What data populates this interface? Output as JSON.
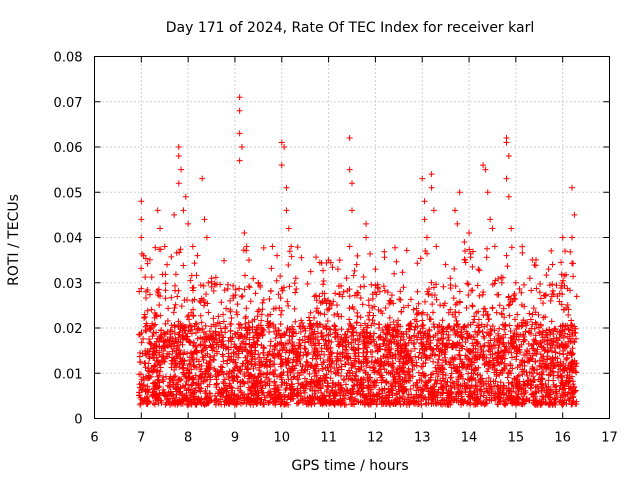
{
  "chart_data": {
    "type": "scatter",
    "title": "Day 171 of 2024, Rate Of TEC Index for receiver karl",
    "xlabel": "GPS time / hours",
    "ylabel": "ROTI / TECUs",
    "xlim": [
      6,
      17
    ],
    "ylim": [
      0,
      0.08
    ],
    "xticks": [
      "6",
      "7",
      "8",
      "9",
      "10",
      "11",
      "12",
      "13",
      "14",
      "15",
      "16",
      "17"
    ],
    "yticks": [
      "0",
      "0.01",
      "0.02",
      "0.03",
      "0.04",
      "0.05",
      "0.06",
      "0.07",
      "0.08"
    ],
    "grid": true,
    "marker": "plus",
    "color": "#ff0000",
    "series": [
      {
        "name": "ROTI",
        "x_range": [
          6.95,
          16.3
        ],
        "typical_range": [
          0.003,
          0.03
        ],
        "points": [
          [
            7.0,
            0.048
          ],
          [
            7.0,
            0.044
          ],
          [
            7.0,
            0.04
          ],
          [
            7.05,
            0.036
          ],
          [
            7.1,
            0.028
          ],
          [
            7.35,
            0.046
          ],
          [
            7.4,
            0.042
          ],
          [
            7.5,
            0.038
          ],
          [
            7.55,
            0.034
          ],
          [
            7.7,
            0.045
          ],
          [
            7.8,
            0.06
          ],
          [
            7.8,
            0.058
          ],
          [
            7.85,
            0.055
          ],
          [
            7.8,
            0.052
          ],
          [
            7.9,
            0.046
          ],
          [
            7.95,
            0.049
          ],
          [
            8.0,
            0.043
          ],
          [
            8.1,
            0.038
          ],
          [
            8.2,
            0.036
          ],
          [
            8.3,
            0.053
          ],
          [
            8.35,
            0.044
          ],
          [
            8.4,
            0.04
          ],
          [
            8.5,
            0.031
          ],
          [
            8.9,
            0.024
          ],
          [
            9.1,
            0.071
          ],
          [
            9.1,
            0.068
          ],
          [
            9.1,
            0.063
          ],
          [
            9.15,
            0.06
          ],
          [
            9.1,
            0.057
          ],
          [
            9.2,
            0.041
          ],
          [
            9.25,
            0.038
          ],
          [
            9.3,
            0.035
          ],
          [
            9.5,
            0.03
          ],
          [
            9.8,
            0.038
          ],
          [
            9.9,
            0.036
          ],
          [
            10.0,
            0.061
          ],
          [
            10.05,
            0.06
          ],
          [
            10.0,
            0.056
          ],
          [
            10.1,
            0.051
          ],
          [
            10.1,
            0.046
          ],
          [
            10.15,
            0.042
          ],
          [
            10.2,
            0.038
          ],
          [
            10.3,
            0.031
          ],
          [
            10.7,
            0.027
          ],
          [
            11.0,
            0.035
          ],
          [
            11.2,
            0.033
          ],
          [
            11.45,
            0.062
          ],
          [
            11.45,
            0.055
          ],
          [
            11.5,
            0.052
          ],
          [
            11.5,
            0.046
          ],
          [
            11.45,
            0.038
          ],
          [
            11.6,
            0.034
          ],
          [
            11.8,
            0.043
          ],
          [
            11.8,
            0.04
          ],
          [
            12.0,
            0.033
          ],
          [
            12.4,
            0.032
          ],
          [
            12.6,
            0.029
          ],
          [
            12.9,
            0.028
          ],
          [
            13.0,
            0.053
          ],
          [
            13.05,
            0.048
          ],
          [
            13.05,
            0.044
          ],
          [
            13.1,
            0.04
          ],
          [
            13.2,
            0.054
          ],
          [
            13.2,
            0.051
          ],
          [
            13.25,
            0.046
          ],
          [
            13.3,
            0.038
          ],
          [
            13.5,
            0.034
          ],
          [
            13.6,
            0.031
          ],
          [
            13.7,
            0.046
          ],
          [
            13.75,
            0.043
          ],
          [
            13.8,
            0.05
          ],
          [
            13.9,
            0.039
          ],
          [
            14.0,
            0.041
          ],
          [
            14.2,
            0.033
          ],
          [
            14.3,
            0.056
          ],
          [
            14.35,
            0.055
          ],
          [
            14.4,
            0.05
          ],
          [
            14.45,
            0.044
          ],
          [
            14.5,
            0.042
          ],
          [
            14.55,
            0.038
          ],
          [
            14.7,
            0.03
          ],
          [
            14.8,
            0.062
          ],
          [
            14.8,
            0.061
          ],
          [
            14.85,
            0.058
          ],
          [
            14.8,
            0.053
          ],
          [
            14.85,
            0.049
          ],
          [
            14.9,
            0.042
          ],
          [
            14.8,
            0.036
          ],
          [
            15.0,
            0.03
          ],
          [
            15.3,
            0.031
          ],
          [
            15.7,
            0.033
          ],
          [
            16.0,
            0.04
          ],
          [
            16.05,
            0.037
          ],
          [
            16.2,
            0.051
          ],
          [
            16.25,
            0.045
          ],
          [
            16.2,
            0.04
          ],
          [
            16.3,
            0.027
          ]
        ]
      }
    ]
  }
}
